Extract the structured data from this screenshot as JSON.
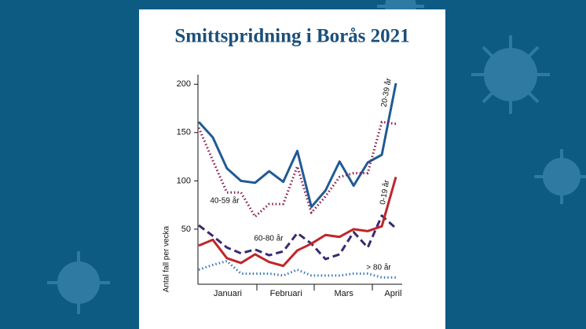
{
  "chart_data": {
    "type": "line",
    "title": "Smittspridning i Borås 2021",
    "y_label": "Antal fall per vecka",
    "x": [
      1,
      2,
      3,
      4,
      5,
      6,
      7,
      8,
      9,
      10,
      11,
      12,
      13,
      14,
      15
    ],
    "xlim": [
      1,
      15
    ],
    "xticks": [
      {
        "value": 3.06,
        "label": "Januari"
      },
      {
        "value": 7.2,
        "label": "Februari"
      },
      {
        "value": 11.3,
        "label": "Mars"
      },
      {
        "value": 14.8,
        "label": "April"
      }
    ],
    "ylim": [
      -7,
      210
    ],
    "yticks": [
      50,
      100,
      150,
      200
    ],
    "series": [
      {
        "name": "20-39 år",
        "color": "#1f5a96",
        "style": "solid",
        "values": [
          161,
          145,
          113,
          100,
          98,
          110,
          99,
          131,
          73,
          90,
          120,
          95,
          119,
          127,
          201
        ]
      },
      {
        "name": "40-59 år",
        "color": "#8b1a4a",
        "style": "dotted",
        "values": [
          155,
          121,
          88,
          88,
          63,
          76,
          76,
          115,
          67,
          84,
          104,
          108,
          108,
          161,
          159
        ]
      },
      {
        "name": "60-80 år",
        "color": "#3a2a6e",
        "style": "dashed",
        "values": [
          54,
          43,
          31,
          25,
          29,
          23,
          27,
          46,
          35,
          19,
          24,
          47,
          31,
          64,
          51
        ]
      },
      {
        "name": "0-19 år",
        "color": "#c0252a",
        "style": "solid",
        "values": [
          33,
          39,
          20,
          15,
          24,
          16,
          12,
          28,
          35,
          44,
          42,
          50,
          48,
          53,
          104
        ]
      },
      {
        "name": "> 80 år",
        "color": "#3a7abf",
        "style": "dotted",
        "values": [
          8,
          13,
          17,
          4,
          4,
          4,
          2,
          8,
          2,
          2,
          2,
          4,
          4,
          0,
          0
        ]
      }
    ]
  }
}
